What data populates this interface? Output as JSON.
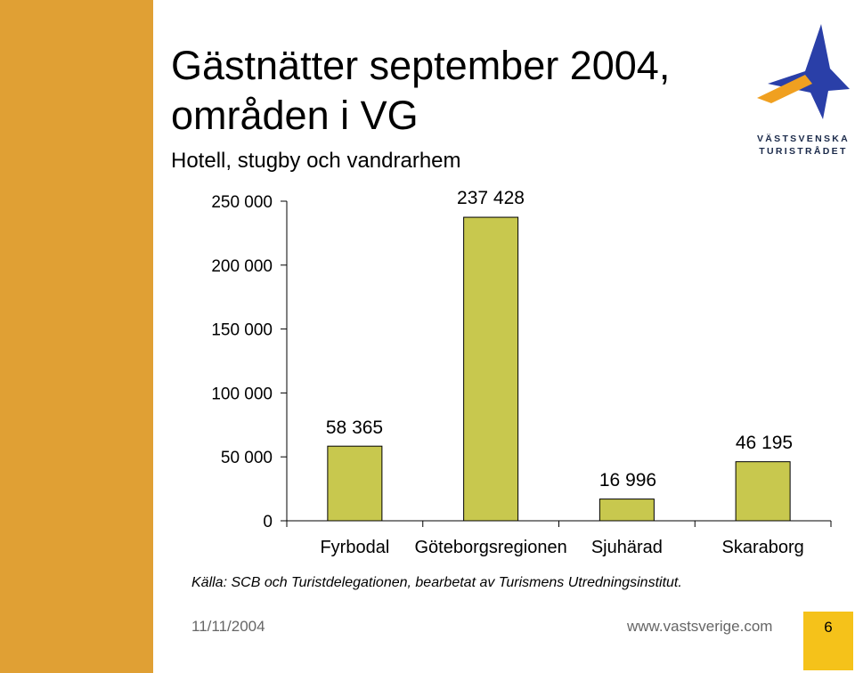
{
  "slide": {
    "title_line1": "Gästnätter september 2004,",
    "title_line2": "områden i VG",
    "subtitle": "Hotell, stugby och vandrarhem",
    "logo_line1": "VÄSTSVENSKA",
    "logo_line2": "TURISTRÅDET",
    "source": "Källa: SCB och Turistdelegationen, bearbetat av Turismens Utredningsinstitut.",
    "date": "11/11/2004",
    "url": "www.vastsverige.com",
    "page_number": "6"
  },
  "colors": {
    "side_bar": "#e0a034",
    "bar_fill": "#c8c84e",
    "bar_stroke": "#000000",
    "page_box": "#f5c21a",
    "logo_blue": "#2a3fa8",
    "logo_orange": "#f0a020"
  },
  "chart_data": {
    "type": "bar",
    "title": "",
    "xlabel": "",
    "ylabel": "",
    "categories": [
      "Fyrbodal",
      "Göteborgsregionen",
      "Sjuhärad",
      "Skaraborg"
    ],
    "values": [
      58365,
      237428,
      16996,
      46195
    ],
    "value_labels": [
      "58 365",
      "237 428",
      "16 996",
      "46 195"
    ],
    "ylim": [
      0,
      250000
    ],
    "yticks": [
      0,
      50000,
      100000,
      150000,
      200000,
      250000
    ],
    "ytick_labels": [
      "0",
      "50 000",
      "100 000",
      "150 000",
      "200 000",
      "250 000"
    ],
    "grid": false,
    "legend": "none"
  }
}
